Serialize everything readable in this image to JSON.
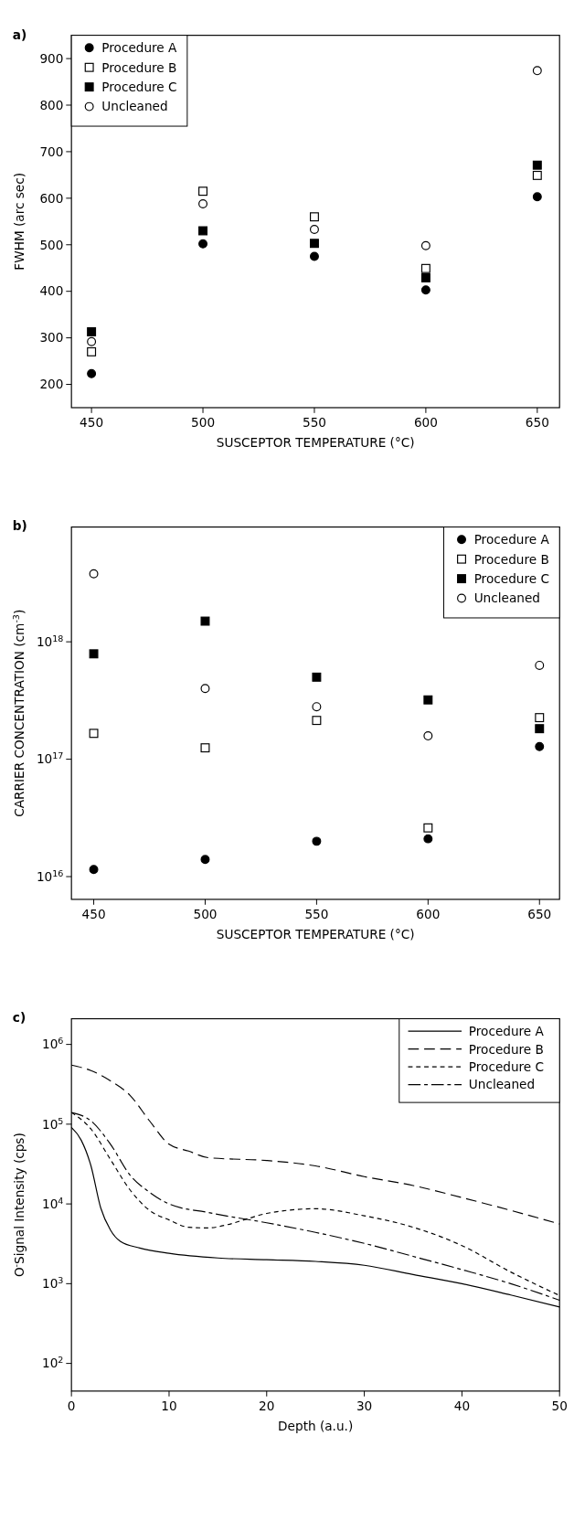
{
  "chart_data": [
    {
      "type": "scatter",
      "title": "a)",
      "xlabel": "SUSCEPTOR TEMPERATURE (°C)",
      "ylabel": "FWHM (arc sec)",
      "x": [
        450,
        500,
        550,
        600,
        650
      ],
      "xlim": [
        441,
        660
      ],
      "xticks": [
        450,
        500,
        550,
        600,
        650
      ],
      "ylim": [
        150,
        950
      ],
      "yticks": [
        200,
        300,
        400,
        500,
        600,
        700,
        800,
        900
      ],
      "grid": false,
      "legend": "top left",
      "series": [
        {
          "name": "Procedure A",
          "color": "#000000",
          "marker": "circle",
          "values": [
            223,
            502,
            475,
            403,
            603
          ]
        },
        {
          "name": "Procedure B",
          "color": "#000000",
          "marker": "square-open",
          "values": [
            270,
            615,
            560,
            449,
            649
          ]
        },
        {
          "name": "Procedure C",
          "color": "#000000",
          "marker": "square",
          "values": [
            313,
            530,
            503,
            429,
            671
          ]
        },
        {
          "name": "Uncleaned",
          "color": "#000000",
          "marker": "circle-open",
          "values": [
            292,
            588,
            533,
            498,
            874
          ]
        }
      ]
    },
    {
      "type": "scatter",
      "title": "b)",
      "xlabel": "SUSCEPTOR TEMPERATURE (°C)",
      "ylabel": "CARRIER CONCENTRATION (cm$^{-3}$)",
      "x": [
        450,
        500,
        550,
        600,
        650
      ],
      "xlim": [
        440,
        659
      ],
      "xticks": [
        450,
        500,
        550,
        600,
        650
      ],
      "log": true,
      "ylim": [
        6400000000000000.0,
        9.5e+18
      ],
      "yticks": [
        {
          "value": 1e+16,
          "label": "10$^{16}$"
        },
        {
          "value": 1e+17,
          "label": "10$^{17}$"
        },
        {
          "value": 1e+18,
          "label": "10$^{18}$"
        }
      ],
      "grid": false,
      "legend": "top right",
      "series": [
        {
          "name": "Procedure A",
          "color": "#000000",
          "marker": "circle",
          "values": [
            1.15e+16,
            1.4e+16,
            2e+16,
            2.1e+16,
            1.28e+17
          ]
        },
        {
          "name": "Procedure B",
          "color": "#000000",
          "marker": "square-open",
          "values": [
            1.66e+17,
            1.25e+17,
            2.14e+17,
            2.6e+16,
            2.26e+17
          ]
        },
        {
          "name": "Procedure C",
          "color": "#000000",
          "marker": "square",
          "values": [
            7.9e+17,
            1.5e+18,
            5e+17,
            3.2e+17,
            1.82e+17
          ]
        },
        {
          "name": "Uncleaned",
          "color": "#000000",
          "marker": "circle-open",
          "values": [
            3.8e+18,
            4e+17,
            2.8e+17,
            1.58e+17,
            6.3e+17
          ]
        }
      ]
    },
    {
      "type": "line",
      "title": "c)",
      "xlabel": "Depth (a.u.)",
      "ylabel": "O$^{-}$Signal Intensity (cps)",
      "xlim": [
        0,
        50
      ],
      "xticks": [
        0,
        10,
        20,
        30,
        40,
        50
      ],
      "log": true,
      "ylim": [
        45,
        2100000.0
      ],
      "yticks": [
        {
          "value": 100,
          "label": "10$^{2}$"
        },
        {
          "value": 1000,
          "label": "10$^{3}$"
        },
        {
          "value": 10000,
          "label": "10$^{4}$"
        },
        {
          "value": 100000,
          "label": "10$^{5}$"
        },
        {
          "value": 1000000,
          "label": "10$^{6}$"
        }
      ],
      "grid": false,
      "legend": "top right",
      "marker": "none",
      "series": [
        {
          "name": "Procedure A",
          "color": "#000000",
          "line_style": "solid",
          "x": [
            0,
            1,
            2,
            3,
            4,
            5,
            7,
            10,
            15,
            20,
            25,
            30,
            35,
            40,
            45,
            50
          ],
          "values": [
            91000,
            63000,
            30000,
            8900,
            4700,
            3400,
            2800,
            2400,
            2100,
            2000,
            1900,
            1700,
            1300,
            1000,
            720,
            510
          ]
        },
        {
          "name": "Procedure B",
          "color": "#000000",
          "line_style": "dashed",
          "x": [
            0,
            2,
            4,
            6,
            8,
            10,
            12,
            14,
            20,
            25,
            30,
            35,
            40,
            45,
            50
          ],
          "values": [
            550000,
            470000,
            350000,
            230000,
            110000,
            56000,
            46000,
            38000,
            35000,
            30000,
            22000,
            17000,
            12000,
            8300,
            5600
          ]
        },
        {
          "name": "Procedure C",
          "color": "#000000",
          "line_style": "dotted",
          "x": [
            0,
            2,
            4,
            6,
            8,
            10,
            12,
            14,
            16,
            18,
            20,
            25,
            30,
            35,
            40,
            45,
            50
          ],
          "values": [
            140000,
            87000,
            36000,
            15000,
            8300,
            6300,
            5100,
            5000,
            5500,
            6500,
            7600,
            8700,
            7100,
            5100,
            3000,
            1400,
            710
          ]
        },
        {
          "name": "Uncleaned",
          "color": "#000000",
          "line_style": "dashdot",
          "x": [
            0,
            2,
            4,
            6,
            8,
            10,
            14,
            20,
            25,
            30,
            35,
            40,
            45,
            50
          ],
          "values": [
            140000,
            110000,
            56000,
            23000,
            14000,
            10000,
            7800,
            5800,
            4400,
            3200,
            2200,
            1500,
            1000,
            620
          ]
        }
      ]
    }
  ]
}
